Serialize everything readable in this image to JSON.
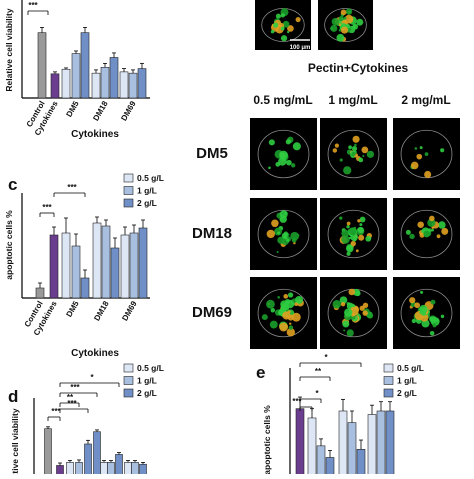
{
  "chart_data": [
    {
      "type": "bar",
      "ylabel": "Relative cell viability",
      "xlabel": "Cytokines",
      "categories": [
        "Control",
        "Cytokines",
        null,
        "DM5",
        null,
        null,
        "DM18",
        null,
        null,
        "DM69",
        null
      ],
      "values": [
        1.0,
        0.37,
        0.44,
        0.68,
        1.0,
        0.38,
        0.47,
        0.62,
        0.4,
        0.38,
        0.45
      ],
      "errors": [
        0.08,
        0.03,
        0.02,
        0.04,
        0.08,
        0.05,
        0.06,
        0.07,
        0.05,
        0.05,
        0.08
      ],
      "colors": [
        "#9a9a9a",
        "#6a3d8f",
        "#dde6f4",
        "#a9bfe0",
        "#6f8fc6",
        "#dde6f4",
        "#a9bfe0",
        "#6f8fc6",
        "#dde6f4",
        "#a9bfe0",
        "#6f8fc6"
      ],
      "ylim": [
        0,
        1.5
      ],
      "annotations": [
        "***"
      ]
    },
    {
      "type": "bar",
      "panel": "c",
      "ylabel": "apoptotic cells %",
      "xlabel": "Cytokines",
      "categories": [
        "Control",
        "Cytokines",
        null,
        "DM5",
        null,
        null,
        "DM18",
        null,
        null,
        "DM69",
        null
      ],
      "values": [
        10,
        63,
        65,
        52,
        20,
        75,
        72,
        50,
        63,
        65,
        70
      ],
      "errors": [
        5,
        8,
        15,
        12,
        8,
        6,
        6,
        10,
        8,
        8,
        8
      ],
      "colors": [
        "#9a9a9a",
        "#6a3d8f",
        "#dde6f4",
        "#a9bfe0",
        "#6f8fc6",
        "#dde6f4",
        "#a9bfe0",
        "#6f8fc6",
        "#dde6f4",
        "#a9bfe0",
        "#6f8fc6"
      ],
      "ylim": [
        0,
        105
      ],
      "legend": [
        {
          "name": "0.5 g/L",
          "color": "#dde6f4"
        },
        {
          "name": "1 g/L",
          "color": "#a9bfe0"
        },
        {
          "name": "2 g/L",
          "color": "#6f8fc6"
        }
      ],
      "annotations": [
        "***",
        "***"
      ]
    },
    {
      "type": "bar",
      "panel": "d",
      "ylabel": "Relative cell viability",
      "values": [
        1.0,
        0.4,
        0.45,
        0.45,
        0.75,
        0.95,
        0.45,
        0.45,
        0.58,
        0.45,
        0.45,
        0.42
      ],
      "errors": [
        0.03,
        0.04,
        0.03,
        0.04,
        0.06,
        0.03,
        0.03,
        0.03,
        0.03,
        0.03,
        0.03,
        0.03
      ],
      "colors": [
        "#9a9a9a",
        "#6a3d8f",
        "#dde6f4",
        "#a9bfe0",
        "#6f8fc6",
        "#6f8fc6",
        "#dde6f4",
        "#a9bfe0",
        "#6f8fc6",
        "#dde6f4",
        "#a9bfe0",
        "#6f8fc6"
      ],
      "ylim": [
        0,
        1.5
      ],
      "legend": [
        {
          "name": "0.5 g/L",
          "color": "#dde6f4"
        },
        {
          "name": "1 g/L",
          "color": "#a9bfe0"
        },
        {
          "name": "2 g/L",
          "color": "#6f8fc6"
        }
      ],
      "annotations": [
        "***",
        "***",
        "**",
        "***",
        "*"
      ]
    },
    {
      "type": "bar",
      "panel": "e",
      "ylabel": "apoptotic cells %",
      "values": [
        70,
        62,
        38,
        28,
        68,
        58,
        35,
        65,
        68,
        68
      ],
      "errors": [
        10,
        8,
        6,
        6,
        10,
        10,
        8,
        8,
        8,
        8
      ],
      "colors": [
        "#6a3d8f",
        "#dde6f4",
        "#a9bfe0",
        "#6f8fc6",
        "#dde6f4",
        "#a9bfe0",
        "#6f8fc6",
        "#dde6f4",
        "#a9bfe0",
        "#6f8fc6"
      ],
      "ylim": [
        0,
        105
      ],
      "legend": [
        {
          "name": "0.5 g/L",
          "color": "#dde6f4"
        },
        {
          "name": "1 g/L",
          "color": "#a9bfe0"
        },
        {
          "name": "2 g/L",
          "color": "#6f8fc6"
        }
      ],
      "annotations": [
        "***",
        "*",
        "**",
        "*"
      ]
    }
  ],
  "images": {
    "scale_bar": "100 μm",
    "title": "Pectin+Cytokines",
    "columns": [
      "0.5 mg/mL",
      "1 mg/mL",
      "2 mg/mL"
    ],
    "rows": [
      "DM5",
      "DM18",
      "DM69"
    ]
  }
}
